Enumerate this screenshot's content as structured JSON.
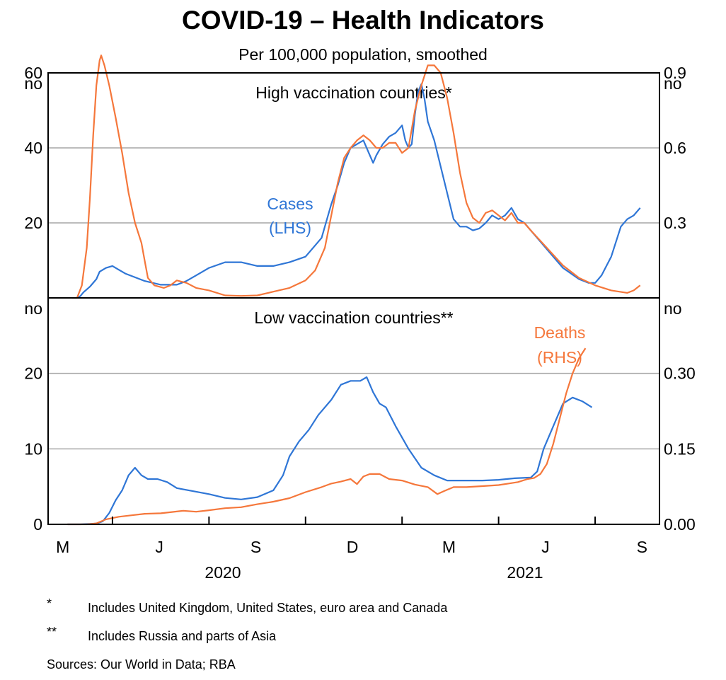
{
  "title": "COVID-19 – Health Indicators",
  "subtitle": "Per 100,000 population, smoothed",
  "colors": {
    "cases": "#2f76d6",
    "deaths": "#f5773b",
    "grid": "#a6a6a6",
    "axis": "#000000"
  },
  "chart_data": [
    {
      "type": "line",
      "panel": "High vaccination countries*",
      "lhs_unit": "no",
      "rhs_unit": "no",
      "lhs_ticks": [
        "20",
        "40",
        "60"
      ],
      "rhs_ticks": [
        "0.3",
        "0.6",
        "0.9"
      ],
      "lhs_ylim": [
        0,
        60
      ],
      "rhs_ylim": [
        0,
        0.9
      ],
      "x_range_months": [
        0,
        19
      ],
      "annotations": {
        "cases_label": [
          "Cases",
          "(LHS)"
        ]
      },
      "series": [
        {
          "name": "Cases",
          "axis": "lhs",
          "points": [
            [
              0.9,
              0
            ],
            [
              1.0,
              0.5
            ],
            [
              1.1,
              1.5
            ],
            [
              1.3,
              3
            ],
            [
              1.5,
              5
            ],
            [
              1.6,
              7
            ],
            [
              1.8,
              8
            ],
            [
              2.0,
              8.5
            ],
            [
              2.2,
              7.5
            ],
            [
              2.4,
              6.5
            ],
            [
              2.7,
              5.5
            ],
            [
              3.0,
              4.5
            ],
            [
              3.5,
              3.5
            ],
            [
              4.0,
              3.5
            ],
            [
              4.3,
              4.5
            ],
            [
              4.6,
              6
            ],
            [
              5.0,
              8
            ],
            [
              5.5,
              9.5
            ],
            [
              6.0,
              9.5
            ],
            [
              6.5,
              8.5
            ],
            [
              7.0,
              8.5
            ],
            [
              7.5,
              9.5
            ],
            [
              8.0,
              11
            ],
            [
              8.5,
              16
            ],
            [
              8.8,
              25
            ],
            [
              9.0,
              30
            ],
            [
              9.2,
              36
            ],
            [
              9.4,
              40
            ],
            [
              9.6,
              41
            ],
            [
              9.8,
              42
            ],
            [
              10.0,
              38
            ],
            [
              10.1,
              36
            ],
            [
              10.2,
              38
            ],
            [
              10.4,
              41
            ],
            [
              10.6,
              43
            ],
            [
              10.8,
              44
            ],
            [
              11.0,
              46
            ],
            [
              11.1,
              42
            ],
            [
              11.2,
              40
            ],
            [
              11.3,
              41
            ],
            [
              11.4,
              49
            ],
            [
              11.5,
              55
            ],
            [
              11.6,
              57
            ],
            [
              11.7,
              53
            ],
            [
              11.8,
              47
            ],
            [
              12.0,
              42
            ],
            [
              12.2,
              35
            ],
            [
              12.4,
              28
            ],
            [
              12.6,
              21
            ],
            [
              12.8,
              19
            ],
            [
              13.0,
              19
            ],
            [
              13.2,
              18
            ],
            [
              13.4,
              18.5
            ],
            [
              13.6,
              20
            ],
            [
              13.8,
              22
            ],
            [
              14.0,
              21
            ],
            [
              14.2,
              22
            ],
            [
              14.4,
              24
            ],
            [
              14.6,
              21
            ],
            [
              14.8,
              20
            ],
            [
              15.0,
              18
            ],
            [
              15.5,
              13
            ],
            [
              16.0,
              8
            ],
            [
              16.5,
              5
            ],
            [
              16.8,
              4
            ],
            [
              17.0,
              4
            ],
            [
              17.2,
              6
            ],
            [
              17.5,
              11
            ],
            [
              17.8,
              19
            ],
            [
              18.0,
              21
            ],
            [
              18.2,
              22
            ],
            [
              18.4,
              24
            ]
          ]
        },
        {
          "name": "Deaths",
          "axis": "rhs",
          "points": [
            [
              0.75,
              0
            ],
            [
              0.9,
              0
            ],
            [
              1.05,
              0.05
            ],
            [
              1.2,
              0.2
            ],
            [
              1.3,
              0.4
            ],
            [
              1.4,
              0.65
            ],
            [
              1.5,
              0.85
            ],
            [
              1.6,
              0.95
            ],
            [
              1.65,
              0.97
            ],
            [
              1.75,
              0.93
            ],
            [
              1.9,
              0.85
            ],
            [
              2.1,
              0.72
            ],
            [
              2.3,
              0.58
            ],
            [
              2.5,
              0.42
            ],
            [
              2.7,
              0.3
            ],
            [
              2.9,
              0.22
            ],
            [
              3.0,
              0.15
            ],
            [
              3.1,
              0.08
            ],
            [
              3.3,
              0.05
            ],
            [
              3.6,
              0.04
            ],
            [
              3.8,
              0.05
            ],
            [
              4.0,
              0.07
            ],
            [
              4.3,
              0.06
            ],
            [
              4.6,
              0.04
            ],
            [
              5.0,
              0.03
            ],
            [
              5.5,
              0.01
            ],
            [
              6.0,
              0.008
            ],
            [
              6.5,
              0.01
            ],
            [
              7.0,
              0.025
            ],
            [
              7.5,
              0.04
            ],
            [
              8.0,
              0.07
            ],
            [
              8.3,
              0.11
            ],
            [
              8.6,
              0.2
            ],
            [
              8.8,
              0.33
            ],
            [
              9.0,
              0.46
            ],
            [
              9.2,
              0.56
            ],
            [
              9.4,
              0.6
            ],
            [
              9.6,
              0.63
            ],
            [
              9.8,
              0.65
            ],
            [
              10.0,
              0.63
            ],
            [
              10.2,
              0.6
            ],
            [
              10.4,
              0.6
            ],
            [
              10.6,
              0.62
            ],
            [
              10.8,
              0.62
            ],
            [
              11.0,
              0.58
            ],
            [
              11.2,
              0.6
            ],
            [
              11.4,
              0.75
            ],
            [
              11.6,
              0.85
            ],
            [
              11.8,
              0.93
            ],
            [
              12.0,
              0.93
            ],
            [
              12.2,
              0.9
            ],
            [
              12.4,
              0.8
            ],
            [
              12.6,
              0.66
            ],
            [
              12.8,
              0.5
            ],
            [
              13.0,
              0.38
            ],
            [
              13.2,
              0.32
            ],
            [
              13.4,
              0.3
            ],
            [
              13.6,
              0.34
            ],
            [
              13.8,
              0.35
            ],
            [
              14.0,
              0.33
            ],
            [
              14.2,
              0.31
            ],
            [
              14.4,
              0.34
            ],
            [
              14.6,
              0.3
            ],
            [
              14.8,
              0.3
            ],
            [
              15.0,
              0.27
            ],
            [
              15.5,
              0.2
            ],
            [
              16.0,
              0.13
            ],
            [
              16.5,
              0.08
            ],
            [
              17.0,
              0.05
            ],
            [
              17.5,
              0.03
            ],
            [
              18.0,
              0.02
            ],
            [
              18.2,
              0.03
            ],
            [
              18.4,
              0.05
            ]
          ]
        }
      ]
    },
    {
      "type": "line",
      "panel": "Low vaccination countries**",
      "lhs_unit": "no",
      "rhs_unit": "no",
      "lhs_ticks": [
        "0",
        "10",
        "20"
      ],
      "rhs_ticks": [
        "0.00",
        "0.15",
        "0.30"
      ],
      "lhs_ylim": [
        0,
        30
      ],
      "rhs_ylim": [
        0,
        0.45
      ],
      "x_range_months": [
        0,
        19
      ],
      "annotations": {
        "deaths_label": [
          "Deaths",
          "(RHS)"
        ]
      },
      "series": [
        {
          "name": "Cases",
          "axis": "lhs",
          "points": [
            [
              0.6,
              0
            ],
            [
              1.0,
              0
            ],
            [
              1.5,
              0.1
            ],
            [
              1.7,
              0.4
            ],
            [
              1.9,
              1.5
            ],
            [
              2.1,
              3.2
            ],
            [
              2.3,
              4.5
            ],
            [
              2.5,
              6.5
            ],
            [
              2.7,
              7.5
            ],
            [
              2.9,
              6.5
            ],
            [
              3.1,
              6
            ],
            [
              3.4,
              6
            ],
            [
              3.7,
              5.6
            ],
            [
              4.0,
              4.8
            ],
            [
              4.5,
              4.4
            ],
            [
              5.0,
              4
            ],
            [
              5.5,
              3.5
            ],
            [
              6.0,
              3.3
            ],
            [
              6.5,
              3.6
            ],
            [
              7.0,
              4.5
            ],
            [
              7.3,
              6.5
            ],
            [
              7.5,
              9
            ],
            [
              7.8,
              11
            ],
            [
              8.1,
              12.5
            ],
            [
              8.4,
              14.5
            ],
            [
              8.8,
              16.5
            ],
            [
              9.1,
              18.5
            ],
            [
              9.4,
              19
            ],
            [
              9.7,
              19
            ],
            [
              9.9,
              19.5
            ],
            [
              10.1,
              17.5
            ],
            [
              10.3,
              16
            ],
            [
              10.5,
              15.5
            ],
            [
              10.8,
              13
            ],
            [
              11.2,
              10
            ],
            [
              11.6,
              7.5
            ],
            [
              12.0,
              6.5
            ],
            [
              12.4,
              5.8
            ],
            [
              13.0,
              5.8
            ],
            [
              13.5,
              5.8
            ],
            [
              14.0,
              5.9
            ],
            [
              14.5,
              6.1
            ],
            [
              15.0,
              6.2
            ],
            [
              15.2,
              7
            ],
            [
              15.4,
              10
            ],
            [
              15.7,
              13
            ],
            [
              16.0,
              16
            ],
            [
              16.3,
              16.8
            ],
            [
              16.6,
              16.3
            ],
            [
              16.9,
              15.5
            ]
          ]
        },
        {
          "name": "Deaths",
          "axis": "rhs",
          "points": [
            [
              0.6,
              0
            ],
            [
              1.2,
              0
            ],
            [
              1.5,
              0.002
            ],
            [
              1.8,
              0.01
            ],
            [
              2.2,
              0.015
            ],
            [
              2.6,
              0.018
            ],
            [
              3.0,
              0.021
            ],
            [
              3.5,
              0.022
            ],
            [
              3.8,
              0.024
            ],
            [
              4.2,
              0.027
            ],
            [
              4.6,
              0.025
            ],
            [
              5.0,
              0.028
            ],
            [
              5.5,
              0.032
            ],
            [
              6.0,
              0.034
            ],
            [
              6.5,
              0.04
            ],
            [
              7.0,
              0.045
            ],
            [
              7.5,
              0.052
            ],
            [
              8.0,
              0.064
            ],
            [
              8.5,
              0.074
            ],
            [
              8.8,
              0.081
            ],
            [
              9.1,
              0.085
            ],
            [
              9.4,
              0.09
            ],
            [
              9.6,
              0.08
            ],
            [
              9.8,
              0.095
            ],
            [
              10.0,
              0.1
            ],
            [
              10.3,
              0.1
            ],
            [
              10.6,
              0.09
            ],
            [
              11.0,
              0.087
            ],
            [
              11.4,
              0.079
            ],
            [
              11.8,
              0.074
            ],
            [
              12.1,
              0.06
            ],
            [
              12.3,
              0.066
            ],
            [
              12.6,
              0.074
            ],
            [
              13.0,
              0.074
            ],
            [
              13.5,
              0.076
            ],
            [
              14.0,
              0.078
            ],
            [
              14.3,
              0.081
            ],
            [
              14.6,
              0.084
            ],
            [
              14.9,
              0.09
            ],
            [
              15.1,
              0.092
            ],
            [
              15.3,
              0.1
            ],
            [
              15.5,
              0.12
            ],
            [
              15.7,
              0.16
            ],
            [
              15.9,
              0.21
            ],
            [
              16.1,
              0.26
            ],
            [
              16.3,
              0.3
            ],
            [
              16.5,
              0.33
            ],
            [
              16.7,
              0.35
            ]
          ]
        }
      ]
    }
  ],
  "x_axis": {
    "month_labels": [
      "M",
      "J",
      "S",
      "D",
      "M",
      "J",
      "S"
    ],
    "year_labels": [
      "2020",
      "2021"
    ]
  },
  "notes": [
    {
      "mark": "*",
      "text": "Includes United Kingdom, United States, euro area and Canada"
    },
    {
      "mark": "**",
      "text": "Includes Russia and parts of Asia"
    }
  ],
  "sources": "Sources: Our World in Data; RBA"
}
